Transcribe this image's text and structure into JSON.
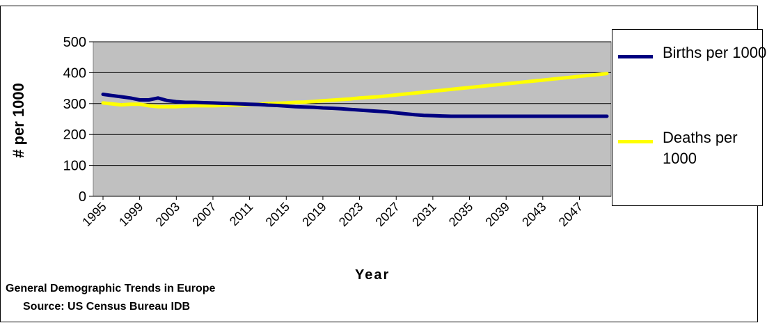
{
  "chart_data": {
    "type": "line",
    "title": "",
    "xlabel": "Year",
    "ylabel": "# per 1000",
    "ylim": [
      0,
      500
    ],
    "yticks": [
      0,
      100,
      200,
      300,
      400,
      500
    ],
    "xlim": [
      1995,
      2050
    ],
    "x_tick_labels": [
      "1995",
      "1999",
      "2003",
      "2007",
      "2011",
      "2015",
      "2019",
      "2023",
      "2027",
      "2031",
      "2035",
      "2039",
      "2043",
      "2047"
    ],
    "grid": "horizontal",
    "legend_position": "right",
    "background": "#c0c0c0",
    "x": [
      1995,
      1996,
      1997,
      1998,
      1999,
      2000,
      2001,
      2002,
      2003,
      2004,
      2005,
      2006,
      2007,
      2008,
      2009,
      2010,
      2011,
      2012,
      2013,
      2014,
      2015,
      2016,
      2017,
      2018,
      2019,
      2020,
      2021,
      2022,
      2023,
      2024,
      2025,
      2026,
      2027,
      2028,
      2029,
      2030,
      2031,
      2032,
      2033,
      2034,
      2035,
      2036,
      2037,
      2038,
      2039,
      2040,
      2041,
      2042,
      2043,
      2044,
      2045,
      2046,
      2047,
      2048,
      2049,
      2050
    ],
    "series": [
      {
        "name": "Births per 1000",
        "color": "#000080",
        "values": [
          330,
          326,
          322,
          318,
          312,
          312,
          318,
          310,
          306,
          304,
          304,
          303,
          302,
          301,
          300,
          299,
          298,
          297,
          295,
          294,
          292,
          290,
          289,
          288,
          286,
          285,
          283,
          281,
          279,
          277,
          275,
          273,
          270,
          267,
          264,
          262,
          261,
          260,
          259,
          259,
          259,
          259,
          259,
          259,
          259,
          259,
          259,
          259,
          259,
          259,
          259,
          259,
          259,
          259,
          259,
          259
        ]
      },
      {
        "name": "Deaths per 1000",
        "color": "#ffff00",
        "values": [
          302,
          299,
          296,
          298,
          298,
          293,
          290,
          290,
          290,
          292,
          293,
          293,
          293,
          294,
          295,
          296,
          297,
          298,
          300,
          301,
          302,
          304,
          305,
          307,
          309,
          311,
          313,
          315,
          318,
          320,
          322,
          325,
          328,
          331,
          334,
          337,
          340,
          343,
          346,
          349,
          352,
          355,
          358,
          361,
          364,
          367,
          370,
          373,
          376,
          379,
          382,
          385,
          388,
          391,
          394,
          397
        ]
      }
    ]
  },
  "legend": {
    "items": [
      {
        "label": "Births per 1000",
        "color": "#000080"
      },
      {
        "label": "Deaths per 1000",
        "color": "#ffff00"
      }
    ]
  },
  "captions": {
    "line1": "General Demographic Trends in Europe",
    "line2": "Source: US Census Bureau IDB"
  }
}
